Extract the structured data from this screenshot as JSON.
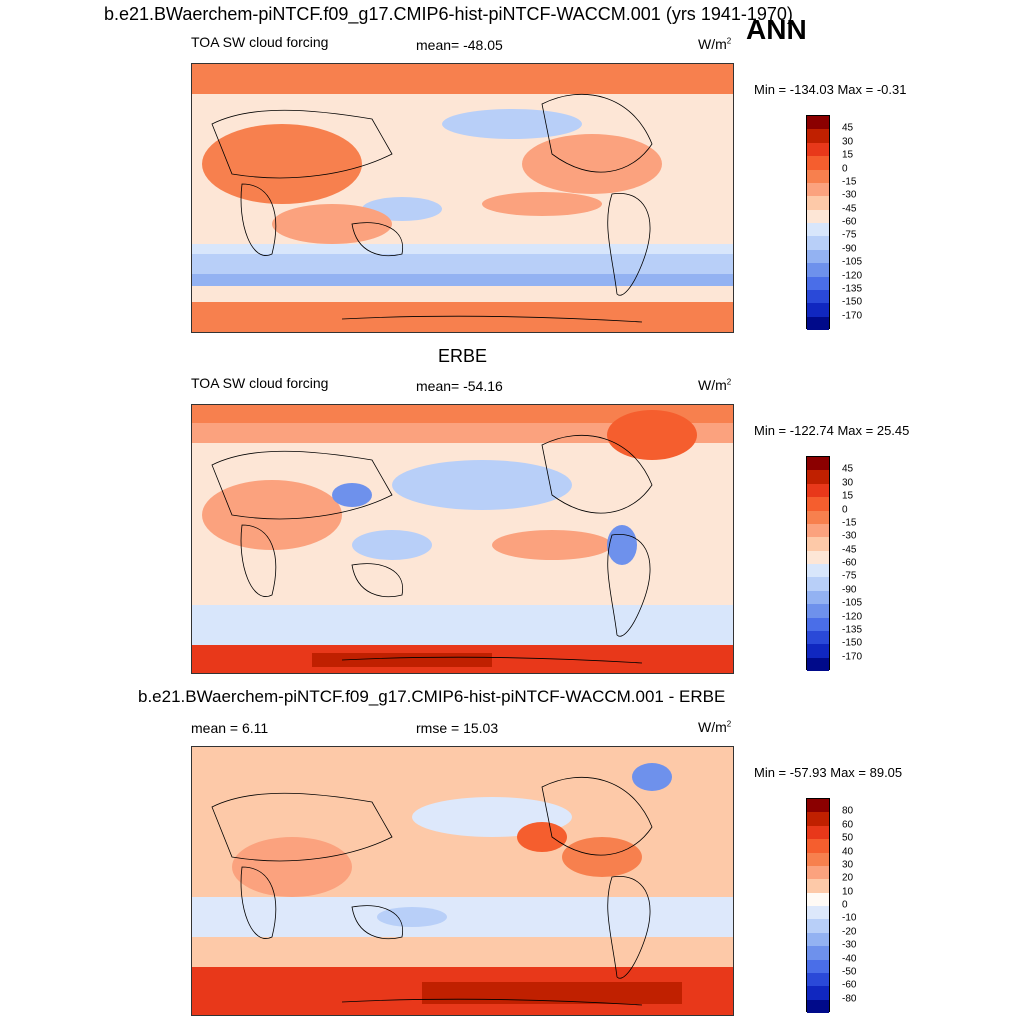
{
  "header": {
    "title": "b.e21.BWaerchem-piNTCF.f09_g17.CMIP6-hist-piNTCF-WACCM.001 (yrs 1941-1970)",
    "season": "ANN"
  },
  "panel_top": {
    "variable": "TOA SW cloud forcing",
    "mean": "mean= -48.05",
    "units": "W/m",
    "units_sup": "2",
    "minmax": "Min = -134.03 Max =  -0.31"
  },
  "panel_mid": {
    "heading": "ERBE",
    "variable": "TOA SW cloud forcing",
    "mean": "mean= -54.16",
    "units": "W/m",
    "units_sup": "2",
    "minmax": "Min = -122.74 Max =  25.45"
  },
  "panel_diff": {
    "heading": "b.e21.BWaerchem-piNTCF.f09_g17.CMIP6-hist-piNTCF-WACCM.001 - ERBE",
    "mean": "mean =   6.11",
    "rmse": "rmse =  15.03",
    "units": "W/m",
    "units_sup": "2",
    "minmax": "Min = -57.93 Max =  89.05"
  },
  "chart_data": [
    {
      "type": "heatmap",
      "title": "TOA SW cloud forcing",
      "min": -134.03,
      "max": -0.31,
      "mean": -48.05,
      "colorbar": {
        "levels": [
          45,
          30,
          15,
          0,
          -15,
          -30,
          -45,
          -60,
          -75,
          -90,
          -105,
          -120,
          -135,
          -150,
          -170
        ],
        "colors": [
          "#8b0000",
          "#c02000",
          "#e8381a",
          "#f55e2e",
          "#f7804e",
          "#fba27e",
          "#fdc9a8",
          "#fde6d6",
          "#d8e6fb",
          "#b8cff8",
          "#93b2f2",
          "#6e91ec",
          "#4a6ee8",
          "#2a49d8",
          "#1027c0",
          "#000a8a"
        ]
      }
    },
    {
      "type": "heatmap",
      "title": "ERBE",
      "min": -122.74,
      "max": 25.45,
      "mean": -54.16,
      "colorbar": {
        "levels": [
          45,
          30,
          15,
          0,
          -15,
          -30,
          -45,
          -60,
          -75,
          -90,
          -105,
          -120,
          -135,
          -150,
          -170
        ],
        "colors": [
          "#8b0000",
          "#c02000",
          "#e8381a",
          "#f55e2e",
          "#f7804e",
          "#fba27e",
          "#fdc9a8",
          "#fde6d6",
          "#d8e6fb",
          "#b8cff8",
          "#93b2f2",
          "#6e91ec",
          "#4a6ee8",
          "#2a49d8",
          "#1027c0",
          "#000a8a"
        ]
      }
    },
    {
      "type": "heatmap",
      "title": "b.e21.BWaerchem-piNTCF.f09_g17.CMIP6-hist-piNTCF-WACCM.001 - ERBE",
      "min": -57.93,
      "max": 89.05,
      "mean": 6.11,
      "rmse": 15.03,
      "colorbar": {
        "levels": [
          80,
          60,
          50,
          40,
          30,
          20,
          10,
          0,
          -10,
          -20,
          -30,
          -40,
          -50,
          -60,
          -80
        ],
        "colors": [
          "#8b0000",
          "#c02000",
          "#e8381a",
          "#f55e2e",
          "#f7804e",
          "#fba27e",
          "#fdc9a8",
          "#fffaf5",
          "#dde8fb",
          "#b8cff8",
          "#93b2f2",
          "#6e91ec",
          "#4a6ee8",
          "#2a49d8",
          "#1027c0",
          "#000a8a"
        ]
      }
    }
  ]
}
